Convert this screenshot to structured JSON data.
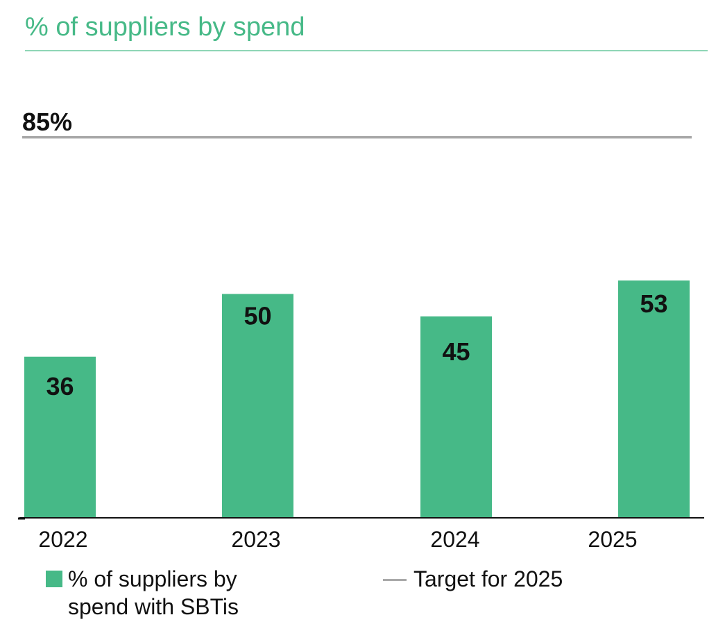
{
  "title": "% of suppliers by spend",
  "chart_data": {
    "type": "bar",
    "categories": [
      "2022",
      "2023",
      "2024",
      "2025"
    ],
    "values": [
      36,
      50,
      45,
      53
    ],
    "value_labels": [
      "36",
      "50",
      "45",
      "53"
    ],
    "target": {
      "value": 85,
      "label": "85%"
    },
    "series_name": "% of  suppliers by spend with SBTis",
    "target_legend": "Target for 2025",
    "ylim": [
      0,
      100
    ],
    "grid": false,
    "legend_placement": "bottom",
    "colors": {
      "bar": "#46b987",
      "target": "#a9a9a9",
      "axis": "#111111"
    }
  }
}
